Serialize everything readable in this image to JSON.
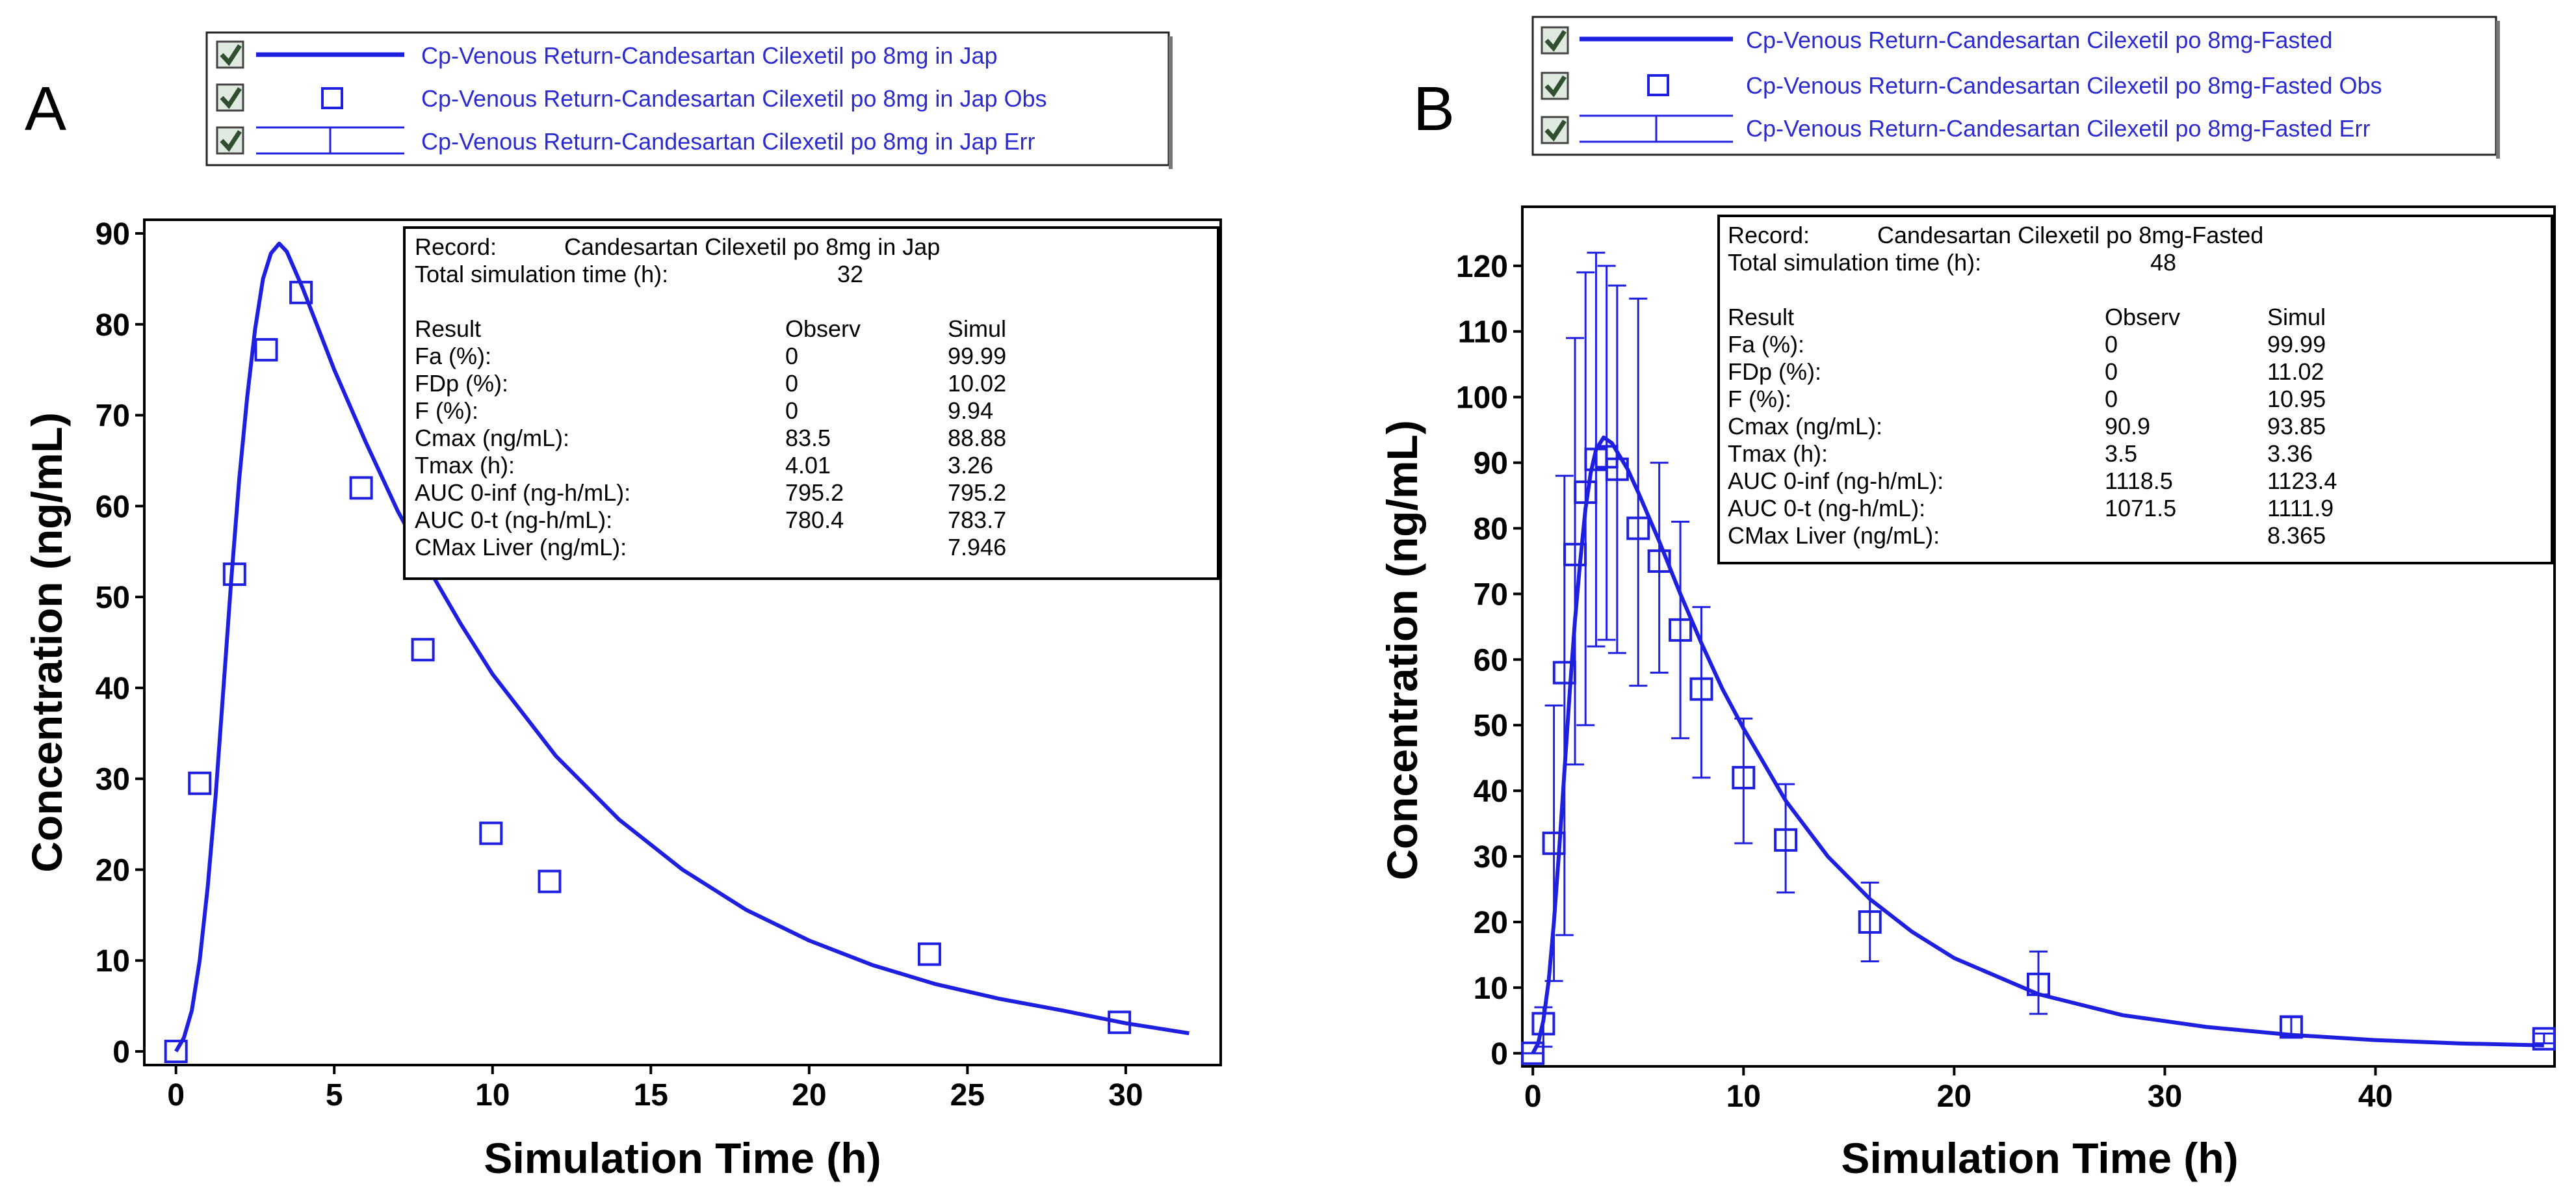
{
  "colors": {
    "series": "#1f1fe0",
    "frame": "#000000",
    "legend_text": "#2b2bd0",
    "background": "#ffffff",
    "checkbox_fill": "#dfe9df",
    "check": "#2f4f2f"
  },
  "chart_data": [
    {
      "panel_label": "A",
      "type": "line",
      "xlabel": "Simulation Time (h)",
      "ylabel": "Concentration (ng/mL)",
      "xlim": [
        -1,
        33
      ],
      "ylim": [
        -1.5,
        91.5
      ],
      "xticks": [
        0,
        5,
        10,
        15,
        20,
        25,
        30
      ],
      "yticks": [
        0,
        10,
        20,
        30,
        40,
        50,
        60,
        70,
        80,
        90
      ],
      "legend_position": "top-left",
      "legend": [
        "Cp-Venous Return-Candesartan Cilexetil po 8mg in Jap",
        "Cp-Venous Return-Candesartan Cilexetil po 8mg in Jap Obs",
        "Cp-Venous Return-Candesartan Cilexetil po 8mg in Jap Err"
      ],
      "series": [
        {
          "kind": "line",
          "x": [
            0,
            0.25,
            0.5,
            0.75,
            1.0,
            1.25,
            1.5,
            1.75,
            2.0,
            2.25,
            2.5,
            2.75,
            3.0,
            3.26,
            3.5,
            4,
            4.5,
            5,
            6,
            7,
            8,
            9,
            10,
            12,
            14,
            16,
            18,
            20,
            22,
            24,
            26,
            28,
            30,
            32
          ],
          "y": [
            0,
            1.5,
            4.5,
            10,
            18,
            28,
            40,
            52,
            63,
            72,
            79.5,
            85,
            87.8,
            88.88,
            88,
            84,
            79.5,
            75,
            67,
            59.5,
            53,
            47,
            41.5,
            32.5,
            25.5,
            20,
            15.6,
            12.2,
            9.5,
            7.4,
            5.8,
            4.5,
            3.1,
            2.0
          ]
        },
        {
          "kind": "markers",
          "x": [
            0,
            0.75,
            1.85,
            2.85,
            3.95,
            5.85,
            7.8,
            9.95,
            11.8,
            23.8,
            29.8
          ],
          "y": [
            0,
            29.5,
            52.5,
            77.2,
            83.5,
            62,
            44.2,
            24,
            18.7,
            10.7,
            3.2
          ]
        }
      ],
      "info_box": {
        "record_label": "Record:",
        "record_value": "Candesartan Cilexetil po 8mg in Jap",
        "sim_time_label": "Total simulation time (h):",
        "sim_time_value": "32",
        "headers": [
          "Result",
          "Observ",
          "Simul"
        ],
        "rows": [
          [
            "Fa (%):",
            "0",
            "99.99"
          ],
          [
            "FDp (%):",
            "0",
            "10.02"
          ],
          [
            "F (%):",
            "0",
            "9.94"
          ],
          [
            "Cmax (ng/mL):",
            "83.5",
            "88.88"
          ],
          [
            "Tmax (h):",
            "4.01",
            "3.26"
          ],
          [
            "AUC 0-inf (ng-h/mL):",
            "795.2",
            "795.2"
          ],
          [
            "AUC 0-t (ng-h/mL):",
            "780.4",
            "783.7"
          ],
          [
            "CMax Liver (ng/mL):",
            "",
            "7.946"
          ]
        ]
      }
    },
    {
      "panel_label": "B",
      "type": "line",
      "xlabel": "Simulation Time (h)",
      "ylabel": "Concentration (ng/mL)",
      "xlim": [
        -0.5,
        48.5
      ],
      "ylim": [
        -2,
        129
      ],
      "xticks": [
        0,
        10,
        20,
        30,
        40
      ],
      "yticks": [
        0,
        10,
        20,
        30,
        40,
        50,
        60,
        70,
        80,
        90,
        100,
        110,
        120
      ],
      "legend_position": "top-left",
      "legend": [
        "Cp-Venous Return-Candesartan Cilexetil po 8mg-Fasted",
        "Cp-Venous Return-Candesartan Cilexetil po 8mg-Fasted Obs",
        "Cp-Venous Return-Candesartan Cilexetil po 8mg-Fasted Err"
      ],
      "series": [
        {
          "kind": "line",
          "x": [
            0,
            0.25,
            0.5,
            0.75,
            1.0,
            1.25,
            1.5,
            1.75,
            2.0,
            2.25,
            2.5,
            2.75,
            3.0,
            3.36,
            3.75,
            4.5,
            5,
            6,
            7,
            8,
            9,
            10,
            12,
            14,
            16,
            18,
            20,
            24,
            28,
            32,
            36,
            40,
            44,
            48
          ],
          "y": [
            0,
            1.5,
            5,
            11,
            20,
            31,
            43,
            55,
            66,
            75,
            83,
            88.5,
            92,
            93.85,
            93,
            89,
            85.5,
            78,
            70,
            62.5,
            55.5,
            49.5,
            38.5,
            30,
            23.5,
            18.5,
            14.5,
            9,
            5.8,
            4.0,
            2.8,
            2.0,
            1.5,
            1.2
          ]
        },
        {
          "kind": "markers",
          "x": [
            0,
            0.5,
            1,
            1.5,
            2,
            2.5,
            3,
            3.5,
            4,
            5,
            6,
            7,
            8,
            10,
            12,
            16,
            24,
            36,
            48
          ],
          "y": [
            0,
            4.5,
            32,
            58,
            76,
            85.5,
            90.5,
            90.9,
            89,
            80,
            75,
            64.5,
            55.5,
            42,
            32.5,
            20,
            10.5,
            4,
            2.2
          ],
          "err_low": [
            0,
            1,
            11,
            18,
            44,
            50,
            62,
            63,
            61,
            56,
            58,
            48,
            42,
            32,
            24.5,
            14,
            6,
            2.5,
            1.5
          ],
          "err_high": [
            0,
            7,
            53,
            88,
            109,
            119,
            122,
            120,
            117,
            115,
            90,
            81,
            68,
            51,
            41,
            26,
            15.5,
            5.5,
            3
          ]
        }
      ],
      "info_box": {
        "record_label": "Record:",
        "record_value": "Candesartan Cilexetil po 8mg-Fasted",
        "sim_time_label": "Total simulation time (h):",
        "sim_time_value": "48",
        "headers": [
          "Result",
          "Observ",
          "Simul"
        ],
        "rows": [
          [
            "Fa (%):",
            "0",
            "99.99"
          ],
          [
            "FDp (%):",
            "0",
            "11.02"
          ],
          [
            "F (%):",
            "0",
            "10.95"
          ],
          [
            "Cmax (ng/mL):",
            "90.9",
            "93.85"
          ],
          [
            "Tmax (h):",
            "3.5",
            "3.36"
          ],
          [
            "AUC 0-inf (ng-h/mL):",
            "1118.5",
            "1123.4"
          ],
          [
            "AUC 0-t (ng-h/mL):",
            "1071.5",
            "1111.9"
          ],
          [
            "CMax Liver (ng/mL):",
            "",
            "8.365"
          ]
        ]
      }
    }
  ]
}
